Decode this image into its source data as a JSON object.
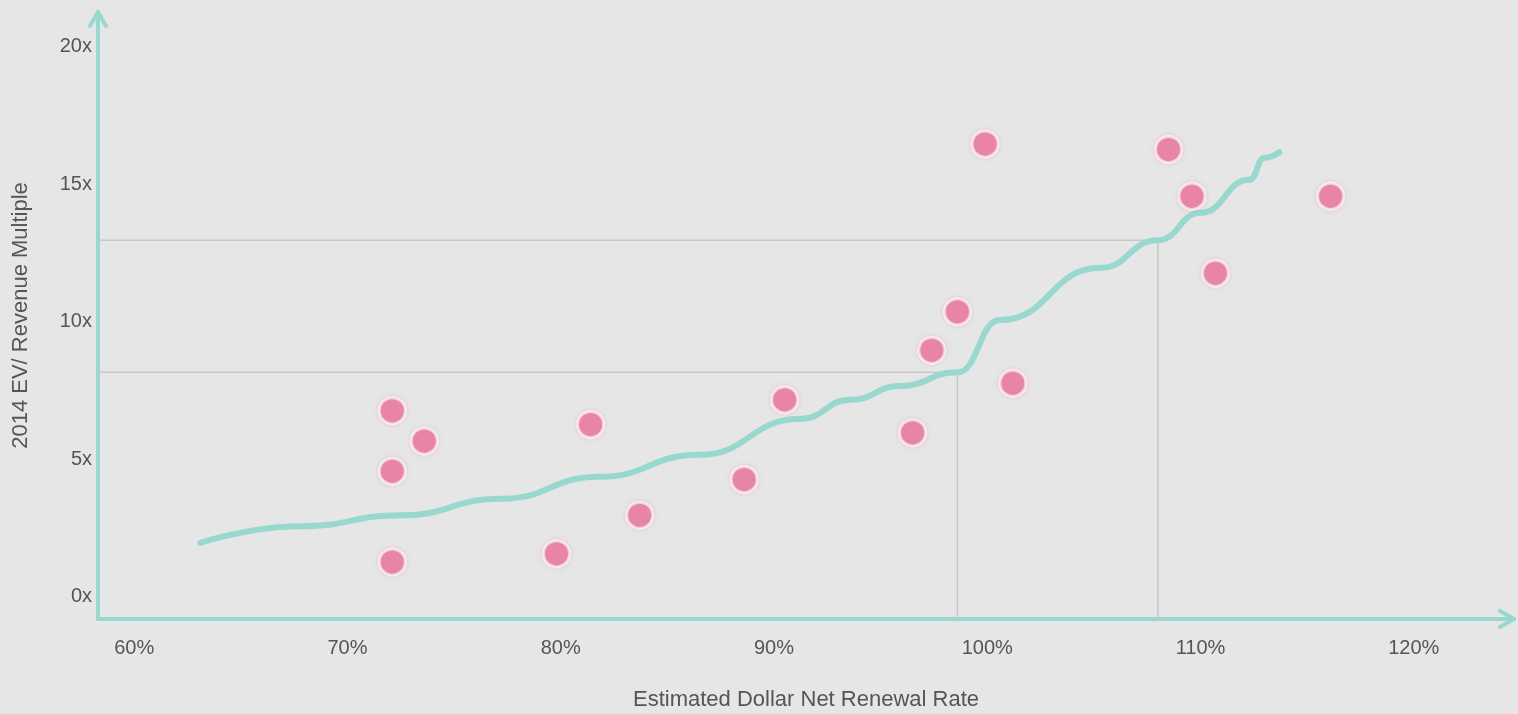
{
  "chart_data": {
    "type": "scatter",
    "xlabel": "Estimated Dollar Net Renewal Rate",
    "ylabel": "2014 EV/ Revenue Multiple",
    "xlim": [
      58.3,
      124.7
    ],
    "ylim": [
      -0.87,
      21.2
    ],
    "xticks": [
      {
        "value": 60,
        "label": "60%"
      },
      {
        "value": 70,
        "label": "70%"
      },
      {
        "value": 80,
        "label": "80%"
      },
      {
        "value": 90,
        "label": "90%"
      },
      {
        "value": 100,
        "label": "100%"
      },
      {
        "value": 110,
        "label": "110%"
      },
      {
        "value": 120,
        "label": "120%"
      }
    ],
    "yticks": [
      {
        "value": 0,
        "label": "0x"
      },
      {
        "value": 5,
        "label": "5x"
      },
      {
        "value": 10,
        "label": "10x"
      },
      {
        "value": 15,
        "label": "15x"
      },
      {
        "value": 20,
        "label": "20x"
      }
    ],
    "grid": false,
    "series": [
      {
        "type": "line",
        "color": "#c8c8c8",
        "marker": "none",
        "x": [
          58.3,
          98.6,
          98.6
        ],
        "values": [
          8.1,
          8.1,
          -0.87
        ]
      },
      {
        "type": "line",
        "color": "#c8c8c8",
        "marker": "none",
        "x": [
          58.3,
          108.0,
          108.0
        ],
        "values": [
          12.9,
          12.9,
          -0.87
        ]
      },
      {
        "type": "line",
        "color": "#98d8cf",
        "marker": "none",
        "x": [
          63.1,
          67.8,
          72.5,
          77.2,
          81.8,
          86.5,
          91.2,
          93.6,
          95.9,
          98.6,
          100.6,
          105.3,
          108.0,
          110.0,
          112.3,
          113.0,
          113.7
        ],
        "values": [
          1.9,
          2.5,
          2.9,
          3.5,
          4.3,
          5.1,
          6.4,
          7.1,
          7.6,
          8.1,
          10.0,
          11.9,
          12.9,
          13.9,
          15.1,
          15.9,
          16.1
        ]
      },
      {
        "color": "#e8789f",
        "marker": "circle",
        "x": [
          72.1,
          73.6,
          72.1,
          72.1,
          79.8,
          81.4,
          83.7,
          88.6,
          90.5,
          96.5,
          97.4,
          98.6,
          99.9,
          101.2,
          108.5,
          109.6,
          110.7,
          116.1
        ],
        "values": [
          6.7,
          5.6,
          4.5,
          1.2,
          1.5,
          6.2,
          2.9,
          4.2,
          7.1,
          5.9,
          8.9,
          10.3,
          16.4,
          7.7,
          16.2,
          14.5,
          11.7,
          14.5
        ]
      }
    ]
  }
}
